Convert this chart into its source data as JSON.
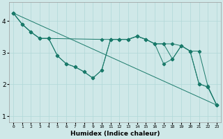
{
  "title": "",
  "xlabel": "Humidex (Indice chaleur)",
  "background_color": "#cfe8e8",
  "line_color": "#1a7a6a",
  "grid_color": "#b0d8d8",
  "xlim": [
    -0.5,
    23.5
  ],
  "ylim": [
    0.8,
    4.6
  ],
  "yticks": [
    1,
    2,
    3,
    4
  ],
  "xticks": [
    0,
    1,
    2,
    3,
    4,
    5,
    6,
    7,
    8,
    9,
    10,
    11,
    12,
    13,
    14,
    15,
    16,
    17,
    18,
    19,
    20,
    21,
    22,
    23
  ],
  "series": [
    {
      "x": [
        0,
        23
      ],
      "y": [
        4.25,
        1.35
      ]
    },
    {
      "x": [
        0,
        1,
        2,
        3,
        4,
        10,
        11,
        12,
        13,
        14,
        15,
        16,
        17,
        18,
        19,
        20,
        21,
        22,
        23
      ],
      "y": [
        4.25,
        3.9,
        3.65,
        3.45,
        3.45,
        3.42,
        3.42,
        3.42,
        3.42,
        3.52,
        3.42,
        3.28,
        3.28,
        3.28,
        3.22,
        3.05,
        3.05,
        1.95,
        1.35
      ]
    },
    {
      "x": [
        0,
        1,
        2,
        3,
        4,
        5,
        6,
        7,
        8,
        9,
        10,
        11,
        12,
        13,
        14,
        15,
        16,
        17,
        18,
        19,
        20,
        21,
        22,
        23
      ],
      "y": [
        4.25,
        3.9,
        3.65,
        3.45,
        3.45,
        2.9,
        2.65,
        2.55,
        2.4,
        2.2,
        2.45,
        3.42,
        3.42,
        3.42,
        3.52,
        3.42,
        3.28,
        3.28,
        2.8,
        3.22,
        3.05,
        2.02,
        1.92,
        1.35
      ]
    },
    {
      "x": [
        0,
        1,
        2,
        3,
        4,
        5,
        6,
        7,
        8,
        9,
        10,
        11,
        12,
        13,
        14,
        15,
        16,
        17,
        18,
        19,
        20,
        21,
        22,
        23
      ],
      "y": [
        4.25,
        3.9,
        3.65,
        3.45,
        3.45,
        2.9,
        2.65,
        2.55,
        2.4,
        2.2,
        2.45,
        3.42,
        3.42,
        3.42,
        3.52,
        3.42,
        3.28,
        2.65,
        2.8,
        3.22,
        3.05,
        2.02,
        1.92,
        1.35
      ]
    }
  ]
}
